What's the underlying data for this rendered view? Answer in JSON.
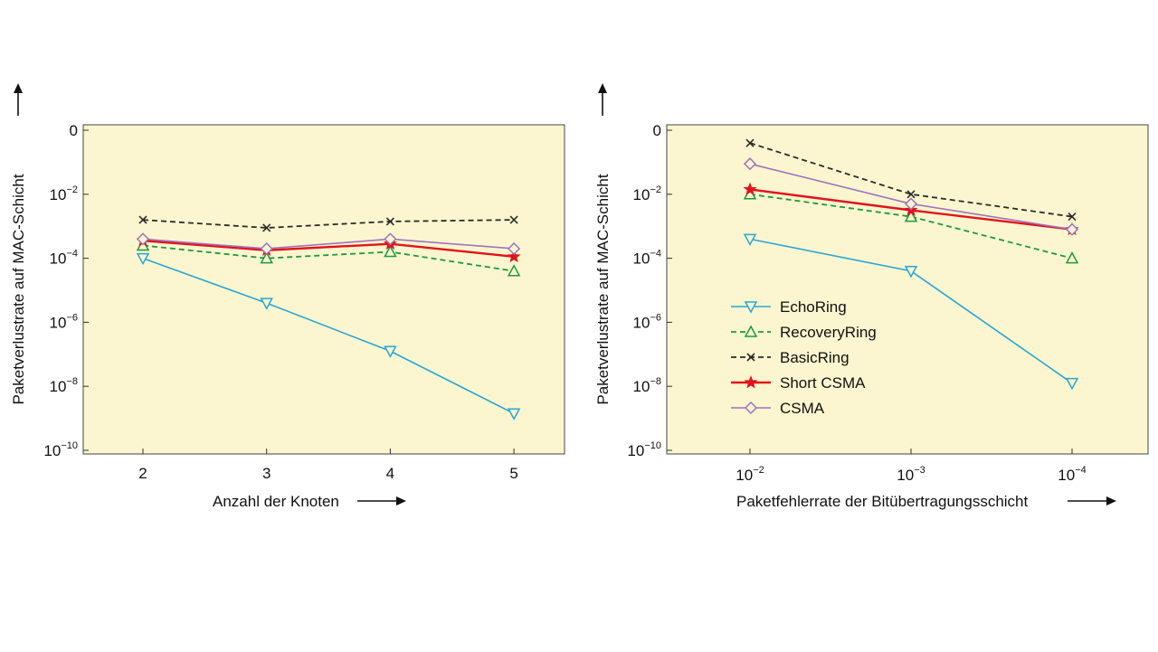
{
  "chart_data": [
    {
      "type": "line",
      "title": "",
      "xlabel": "Anzahl der Knoten",
      "ylabel": "Paketverlustrate auf MAC-Schicht",
      "x_scale": "linear",
      "y_scale": "log",
      "x": [
        2,
        3,
        4,
        5
      ],
      "x_ticks": [
        "2",
        "3",
        "4",
        "5"
      ],
      "xlim": [
        1.5,
        5.4
      ],
      "ylim_exp": [
        -10,
        0
      ],
      "y_ticks": [
        {
          "base": "10",
          "exp": "−10",
          "value": -10
        },
        {
          "base": "10",
          "exp": "−8",
          "value": -8
        },
        {
          "base": "10",
          "exp": "−6",
          "value": -6
        },
        {
          "base": "10",
          "exp": "−4",
          "value": -4
        },
        {
          "base": "10",
          "exp": "−2",
          "value": -2
        },
        {
          "base": "0",
          "exp": "",
          "value": 0
        }
      ],
      "series": [
        {
          "name": "EchoRing",
          "log10_values": [
            -4.0,
            -5.4,
            -6.9,
            -8.85
          ]
        },
        {
          "name": "RecoveryRing",
          "log10_values": [
            -3.6,
            -4.0,
            -3.8,
            -4.4
          ]
        },
        {
          "name": "BasicRing",
          "log10_values": [
            -2.8,
            -3.05,
            -2.85,
            -2.8
          ]
        },
        {
          "name": "Short CSMA",
          "log10_values": [
            -3.45,
            -3.75,
            -3.55,
            -3.95
          ]
        },
        {
          "name": "CSMA",
          "log10_values": [
            -3.4,
            -3.7,
            -3.4,
            -3.7
          ]
        }
      ],
      "grid": false,
      "legend": "none"
    },
    {
      "type": "line",
      "title": "",
      "xlabel": "Paketfehlerrate der Bitübertragungsschicht",
      "ylabel": "Paketverlustrate auf MAC-Schicht",
      "x_scale": "log",
      "y_scale": "log",
      "x_ticks": [
        {
          "base": "10",
          "exp": "−2"
        },
        {
          "base": "10",
          "exp": "−3"
        },
        {
          "base": "10",
          "exp": "−4"
        }
      ],
      "x": [
        0.01,
        0.001,
        0.0001
      ],
      "ylim_exp": [
        -10,
        0
      ],
      "y_ticks": [
        {
          "base": "10",
          "exp": "−10",
          "value": -10
        },
        {
          "base": "10",
          "exp": "−8",
          "value": -8
        },
        {
          "base": "10",
          "exp": "−6",
          "value": -6
        },
        {
          "base": "10",
          "exp": "−4",
          "value": -4
        },
        {
          "base": "10",
          "exp": "−2",
          "value": -2
        },
        {
          "base": "0",
          "exp": "",
          "value": 0
        }
      ],
      "series": [
        {
          "name": "EchoRing",
          "log10_values": [
            -3.4,
            -4.4,
            -7.9
          ]
        },
        {
          "name": "RecoveryRing",
          "log10_values": [
            -2.0,
            -2.7,
            -4.0
          ]
        },
        {
          "name": "BasicRing",
          "log10_values": [
            -0.4,
            -2.0,
            -2.7
          ]
        },
        {
          "name": "Short CSMA",
          "log10_values": [
            -1.85,
            -2.5,
            -3.1
          ]
        },
        {
          "name": "CSMA",
          "log10_values": [
            -1.05,
            -2.3,
            -3.1
          ]
        }
      ],
      "grid": false,
      "legend": "center-left"
    }
  ],
  "legend_items": [
    {
      "name": "EchoRing"
    },
    {
      "name": "RecoveryRing"
    },
    {
      "name": "BasicRing"
    },
    {
      "name": "Short CSMA"
    },
    {
      "name": "CSMA"
    }
  ],
  "colors": {
    "plot_background": "#fbf6cf",
    "EchoRing": "#2aa6d6",
    "RecoveryRing": "#1e9a3a",
    "BasicRing": "#2b2b2b",
    "Short CSMA": "#e0141b",
    "CSMA": "#a072c0"
  }
}
